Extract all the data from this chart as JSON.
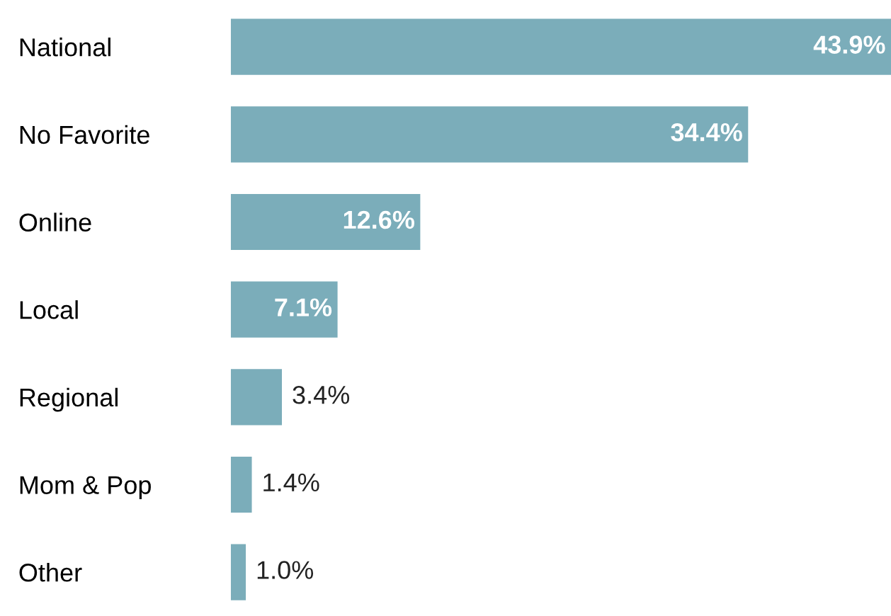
{
  "chart_data": {
    "type": "bar",
    "orientation": "horizontal",
    "categories": [
      "National",
      "No Favorite",
      "Online",
      "Local",
      "Regional",
      "Mom & Pop",
      "Other"
    ],
    "values": [
      43.9,
      34.4,
      12.6,
      7.1,
      3.4,
      1.4,
      1.0
    ],
    "value_labels": [
      "43.9%",
      "34.4%",
      "12.6%",
      "7.1%",
      "3.4%",
      "1.4%",
      "1.0%"
    ],
    "color": "#7badba",
    "grid": false,
    "legend": false,
    "tick_labels": "y"
  }
}
